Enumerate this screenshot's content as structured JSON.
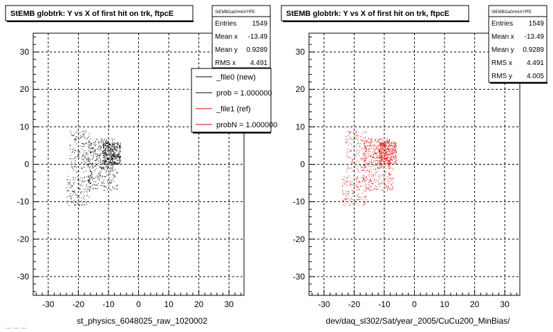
{
  "footer_text": "... ... ...",
  "colors": {
    "file0": "#000000",
    "file1": "#dd0000",
    "frame": "#000000",
    "grid": "#000000"
  },
  "chart_data": [
    {
      "type": "scatter",
      "title": "StEMB globtrk: Y vs X of first hit on trk, ftpcE",
      "xlabel": "st_physics_6048025_raw_1020002",
      "ylabel": "",
      "xlim": [
        -35,
        35
      ],
      "ylim": [
        -35,
        35
      ],
      "xticks": [
        "-30",
        "-20",
        "-10",
        "0",
        "10",
        "20",
        "30"
      ],
      "yticks": [
        "30",
        "20",
        "10",
        "0",
        "-10",
        "-20",
        "-30"
      ],
      "grid": true,
      "stats": {
        "header": "StEMBGaGHrkXYfFE",
        "rows": [
          {
            "label": "Entries",
            "value": "1549"
          },
          {
            "label": "Mean x",
            "value": "-13.49"
          },
          {
            "label": "Mean y",
            "value": "0.9289"
          },
          {
            "label": "RMS x",
            "value": "4.491"
          }
        ]
      },
      "legend": {
        "placement": "top-right",
        "entries": [
          {
            "label": "_file0 (new)",
            "color": "#000000"
          },
          {
            "label": "prob = 1.000000",
            "color": "#000000"
          },
          {
            "label": "_file1 (ref)",
            "color": "#dd0000"
          },
          {
            "label": "probN = 1.000000",
            "color": "#dd0000"
          }
        ]
      },
      "series": [
        {
          "name": "_file0 (new)",
          "color": "#000000",
          "clusters": [
            {
              "x": [
                -23,
                -16
              ],
              "y": [
                -2,
                9
              ],
              "n": 150
            },
            {
              "x": [
                -17,
                -8
              ],
              "y": [
                -1,
                7
              ],
              "n": 300
            },
            {
              "x": [
                -12,
                -6
              ],
              "y": [
                0,
                6
              ],
              "n": 350
            },
            {
              "x": [
                -24,
                -16
              ],
              "y": [
                -11,
                -3
              ],
              "n": 140
            },
            {
              "x": [
                -17,
                -7
              ],
              "y": [
                -7,
                -1
              ],
              "n": 160
            }
          ]
        }
      ]
    },
    {
      "type": "scatter",
      "title": "StEMB globtrk: Y vs X of first hit on trk, ftpcE",
      "xlabel": "dev/daq_sl302/Sat/year_2005/CuCu200_MinBias/",
      "ylabel": "",
      "xlim": [
        -35,
        35
      ],
      "ylim": [
        -35,
        35
      ],
      "xticks": [
        "-30",
        "-20",
        "-10",
        "0",
        "10",
        "20",
        "30"
      ],
      "yticks": [
        "30",
        "20",
        "10",
        "0",
        "-10",
        "-20",
        "-30"
      ],
      "grid": true,
      "stats": {
        "header": "StEMBGaGHrkXYfFE",
        "rows": [
          {
            "label": "Entries",
            "value": "1549"
          },
          {
            "label": "Mean x",
            "value": "-13.49"
          },
          {
            "label": "Mean y",
            "value": "0.9289"
          },
          {
            "label": "RMS x",
            "value": "4.491"
          },
          {
            "label": "RMS y",
            "value": "4.005"
          }
        ]
      },
      "series": [
        {
          "name": "_file1 (ref)",
          "color": "#dd0000",
          "clusters": [
            {
              "x": [
                -23,
                -16
              ],
              "y": [
                -2,
                9
              ],
              "n": 150
            },
            {
              "x": [
                -17,
                -8
              ],
              "y": [
                -1,
                7
              ],
              "n": 300
            },
            {
              "x": [
                -12,
                -6
              ],
              "y": [
                0,
                6
              ],
              "n": 350
            },
            {
              "x": [
                -24,
                -16
              ],
              "y": [
                -11,
                -3
              ],
              "n": 140
            },
            {
              "x": [
                -17,
                -7
              ],
              "y": [
                -7,
                -1
              ],
              "n": 160
            }
          ]
        }
      ]
    }
  ]
}
